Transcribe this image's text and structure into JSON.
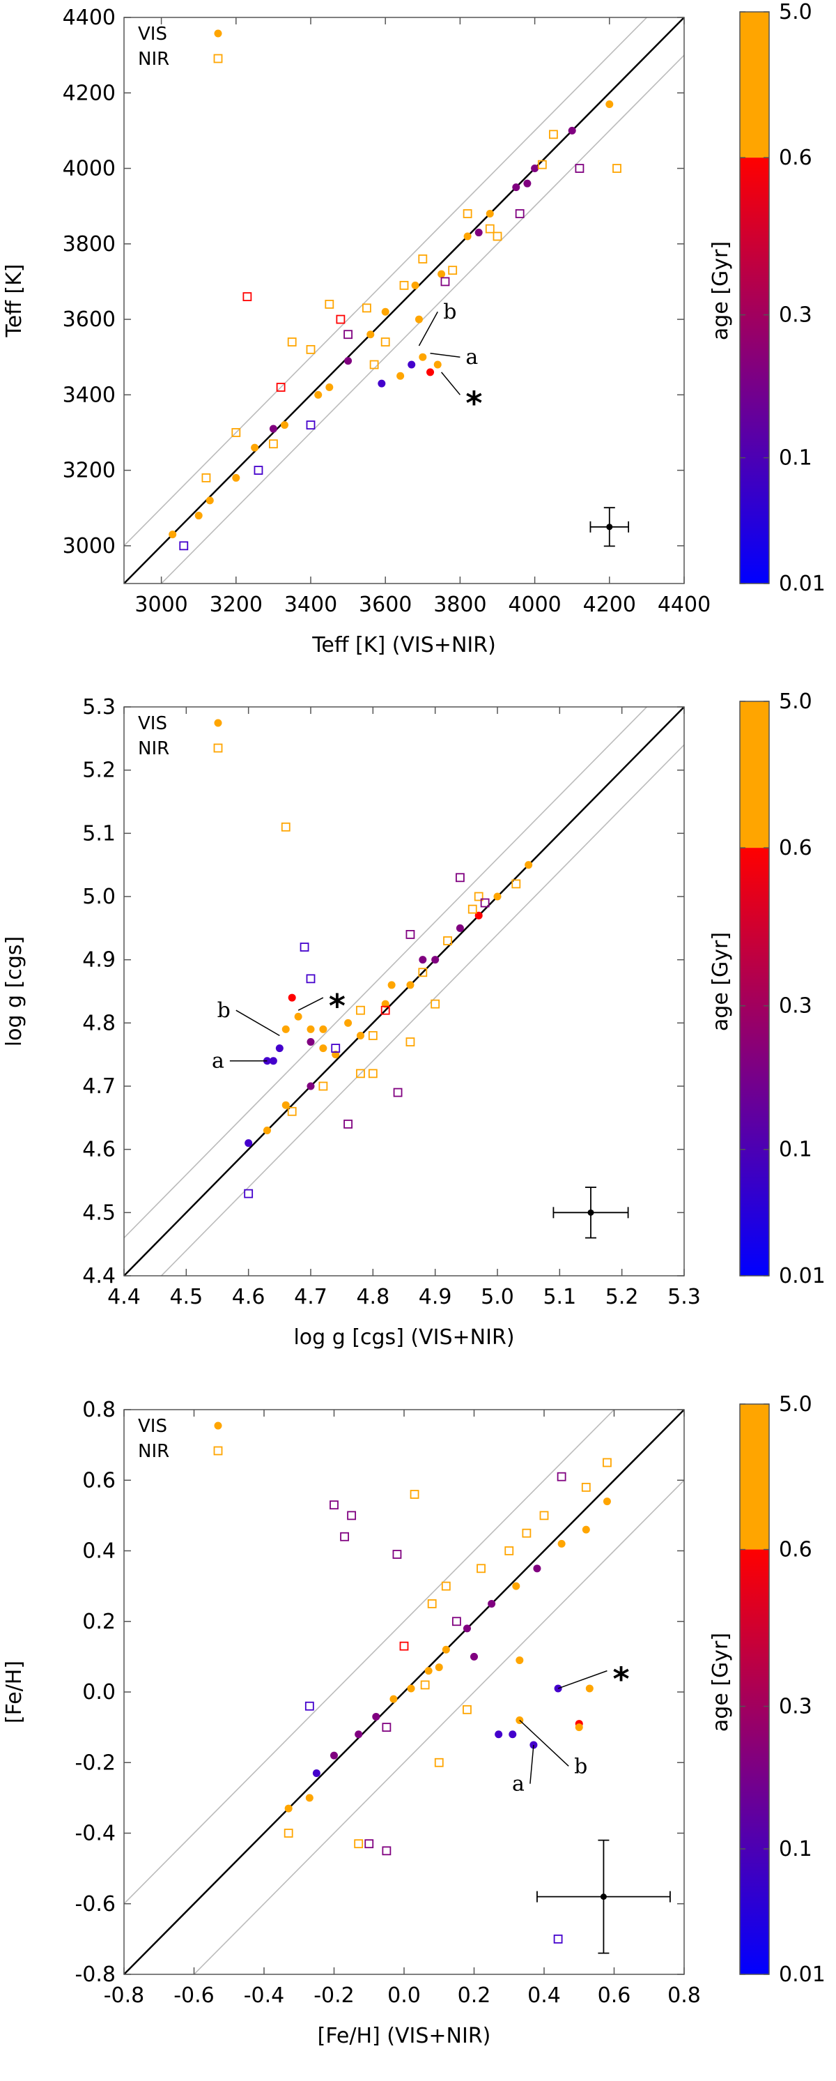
{
  "colors": {
    "vis": "#ffa500",
    "nir": "#ffa500",
    "ref_line": "#000000",
    "dev_line": "#bbbbbb",
    "colorbar": [
      "#0000ff",
      "#800080",
      "#ff0000",
      "#ffa500"
    ]
  },
  "colorbar": {
    "label": "age [Gyr]",
    "ticks": [
      "0.01",
      "0.1",
      "0.3",
      "0.6",
      "5.0"
    ]
  },
  "chart_data": [
    {
      "type": "scatter",
      "xlabel": "Teff [K] (VIS+NIR)",
      "ylabel": "Teff [K]",
      "xlim": [
        2900,
        4400
      ],
      "ylim": [
        2900,
        4400
      ],
      "xticks": [
        3000,
        3200,
        3400,
        3600,
        3800,
        4000,
        4200,
        4400
      ],
      "yticks": [
        3000,
        3200,
        3400,
        3600,
        3800,
        4000,
        4200,
        4400
      ],
      "tick_labels_x": [
        "3000",
        "3200",
        "3400",
        "3600",
        "3800",
        "4000",
        "4200",
        "4400"
      ],
      "tick_labels_y": [
        "3000",
        "3200",
        "3400",
        "3600",
        "3800",
        "4000",
        "4200",
        "4400"
      ],
      "legend": [
        "VIS",
        "NIR"
      ],
      "one_to_one_offset": 100,
      "error_bar": {
        "x": 4200,
        "y": 3050,
        "xerr": 51,
        "yerr": 51
      },
      "annotations": {
        "a": "a",
        "b": "b",
        "star": "*"
      },
      "series": [
        {
          "name": "VIS",
          "marker": "filled-circle",
          "points": [
            [
              3030,
              3030
            ],
            [
              3130,
              3120
            ],
            [
              3250,
              3260
            ],
            [
              3330,
              3320
            ],
            [
              3420,
              3400
            ],
            [
              3500,
              3490
            ],
            [
              3560,
              3560
            ],
            [
              3600,
              3620
            ],
            [
              3680,
              3690
            ],
            [
              3750,
              3720
            ],
            [
              3820,
              3820
            ],
            [
              3880,
              3880
            ],
            [
              3950,
              3950
            ],
            [
              4000,
              4000
            ],
            [
              4100,
              4100
            ],
            [
              4200,
              4170
            ],
            [
              3590,
              3430
            ],
            [
              3670,
              3480
            ],
            [
              3700,
              3500
            ],
            [
              3720,
              3460
            ],
            [
              3740,
              3480
            ],
            [
              3690,
              3600
            ],
            [
              3640,
              3450
            ],
            [
              3300,
              3310
            ],
            [
              3200,
              3180
            ],
            [
              3450,
              3420
            ],
            [
              3100,
              3080
            ],
            [
              3850,
              3830
            ],
            [
              3980,
              3960
            ]
          ],
          "age": [
            5,
            5,
            5,
            5,
            5,
            0.3,
            5,
            5,
            5,
            5,
            5,
            5,
            0.3,
            0.3,
            0.3,
            5,
            0.1,
            0.1,
            5,
            0.6,
            5,
            5,
            5,
            0.3,
            5,
            5,
            5,
            0.3,
            0.3
          ]
        },
        {
          "name": "NIR",
          "marker": "open-square",
          "points": [
            [
              3060,
              3000
            ],
            [
              3120,
              3180
            ],
            [
              3200,
              3300
            ],
            [
              3260,
              3200
            ],
            [
              3320,
              3420
            ],
            [
              3350,
              3540
            ],
            [
              3400,
              3520
            ],
            [
              3450,
              3640
            ],
            [
              3500,
              3560
            ],
            [
              3550,
              3630
            ],
            [
              3600,
              3540
            ],
            [
              3650,
              3690
            ],
            [
              3700,
              3760
            ],
            [
              3760,
              3700
            ],
            [
              3820,
              3880
            ],
            [
              3880,
              3840
            ],
            [
              3960,
              3880
            ],
            [
              4020,
              4010
            ],
            [
              4120,
              4000
            ],
            [
              4220,
              4000
            ],
            [
              3230,
              3660
            ],
            [
              3300,
              3270
            ],
            [
              3400,
              3320
            ],
            [
              3480,
              3600
            ],
            [
              3570,
              3480
            ],
            [
              3780,
              3730
            ],
            [
              3900,
              3820
            ],
            [
              4050,
              4090
            ]
          ],
          "age": [
            0.1,
            5,
            5,
            0.1,
            0.6,
            5,
            5,
            5,
            0.3,
            5,
            5,
            5,
            5,
            0.3,
            5,
            5,
            0.3,
            5,
            0.3,
            5,
            0.6,
            5,
            0.1,
            0.6,
            5,
            5,
            5,
            5
          ]
        }
      ]
    },
    {
      "type": "scatter",
      "xlabel": "log g [cgs] (VIS+NIR)",
      "ylabel": "log g [cgs]",
      "xlim": [
        4.4,
        5.3
      ],
      "ylim": [
        4.4,
        5.3
      ],
      "xticks": [
        4.4,
        4.5,
        4.6,
        4.7,
        4.8,
        4.9,
        5.0,
        5.1,
        5.2,
        5.3
      ],
      "yticks": [
        4.4,
        4.5,
        4.6,
        4.7,
        4.8,
        4.9,
        5.0,
        5.1,
        5.2,
        5.3
      ],
      "tick_labels_x": [
        "4.4",
        "4.5",
        "4.6",
        "4.7",
        "4.8",
        "4.9",
        "5.0",
        "5.1",
        "5.2",
        "5.3"
      ],
      "tick_labels_y": [
        "4.4",
        "4.5",
        "4.6",
        "4.7",
        "4.8",
        "4.9",
        "5.0",
        "5.1",
        "5.2",
        "5.3"
      ],
      "legend": [
        "VIS",
        "NIR"
      ],
      "one_to_one_offset": 0.06,
      "error_bar": {
        "x": 5.15,
        "y": 4.5,
        "xerr": 0.06,
        "yerr": 0.04
      },
      "annotations": {
        "a": "a",
        "b": "b",
        "star": "*"
      },
      "series": [
        {
          "name": "VIS",
          "marker": "filled-circle",
          "points": [
            [
              4.6,
              4.61
            ],
            [
              4.63,
              4.63
            ],
            [
              4.66,
              4.67
            ],
            [
              4.7,
              4.7
            ],
            [
              4.74,
              4.75
            ],
            [
              4.78,
              4.78
            ],
            [
              4.82,
              4.83
            ],
            [
              4.86,
              4.86
            ],
            [
              4.9,
              4.9
            ],
            [
              4.94,
              4.95
            ],
            [
              5.0,
              5.0
            ],
            [
              5.05,
              5.05
            ],
            [
              4.63,
              4.74
            ],
            [
              4.64,
              4.74
            ],
            [
              4.65,
              4.76
            ],
            [
              4.66,
              4.79
            ],
            [
              4.67,
              4.84
            ],
            [
              4.68,
              4.81
            ],
            [
              4.7,
              4.77
            ],
            [
              4.7,
              4.79
            ],
            [
              4.72,
              4.79
            ],
            [
              4.72,
              4.76
            ],
            [
              4.76,
              4.8
            ],
            [
              4.83,
              4.86
            ],
            [
              4.88,
              4.9
            ],
            [
              4.97,
              4.97
            ]
          ],
          "age": [
            0.1,
            5,
            5,
            0.3,
            5,
            5,
            5,
            5,
            0.3,
            0.3,
            5,
            5,
            0.1,
            0.1,
            0.1,
            5,
            0.6,
            5,
            0.3,
            5,
            5,
            5,
            5,
            5,
            0.3,
            0.6
          ]
        },
        {
          "name": "NIR",
          "marker": "open-square",
          "points": [
            [
              4.6,
              4.53
            ],
            [
              4.66,
              5.11
            ],
            [
              4.69,
              4.92
            ],
            [
              4.67,
              4.66
            ],
            [
              4.72,
              4.7
            ],
            [
              4.76,
              4.64
            ],
            [
              4.8,
              4.72
            ],
            [
              4.84,
              4.69
            ],
            [
              4.86,
              4.77
            ],
            [
              4.9,
              4.83
            ],
            [
              4.94,
              5.03
            ],
            [
              4.97,
              5.0
            ],
            [
              4.98,
              4.99
            ],
            [
              5.03,
              5.02
            ],
            [
              4.74,
              4.76
            ],
            [
              4.78,
              4.82
            ],
            [
              4.82,
              4.82
            ],
            [
              4.88,
              4.88
            ],
            [
              4.92,
              4.93
            ],
            [
              4.7,
              4.87
            ],
            [
              4.96,
              4.98
            ],
            [
              4.8,
              4.78
            ],
            [
              4.86,
              4.94
            ],
            [
              4.78,
              4.72
            ]
          ],
          "age": [
            0.1,
            5,
            0.1,
            5,
            5,
            0.3,
            5,
            0.3,
            5,
            5,
            0.3,
            5,
            0.3,
            5,
            0.1,
            5,
            0.6,
            5,
            5,
            0.1,
            5,
            5,
            0.3,
            5
          ]
        }
      ]
    },
    {
      "type": "scatter",
      "xlabel": "[Fe/H] (VIS+NIR)",
      "ylabel": "[Fe/H]",
      "xlim": [
        -0.8,
        0.8
      ],
      "ylim": [
        -0.8,
        0.8
      ],
      "xticks": [
        -0.8,
        -0.6,
        -0.4,
        -0.2,
        0.0,
        0.2,
        0.4,
        0.6,
        0.8
      ],
      "yticks": [
        -0.8,
        -0.6,
        -0.4,
        -0.2,
        0.0,
        0.2,
        0.4,
        0.6,
        0.8
      ],
      "tick_labels_x": [
        "-0.8",
        "-0.6",
        "-0.4",
        "-0.2",
        "0.0",
        "0.2",
        "0.4",
        "0.6",
        "0.8"
      ],
      "tick_labels_y": [
        "-0.8",
        "-0.6",
        "-0.4",
        "-0.2",
        "0.0",
        "0.2",
        "0.4",
        "0.6",
        "0.8"
      ],
      "legend": [
        "VIS",
        "NIR"
      ],
      "one_to_one_offset": 0.2,
      "error_bar": {
        "x": 0.57,
        "y": -0.58,
        "xerr": 0.19,
        "yerr": 0.16
      },
      "annotations": {
        "a": "a",
        "b": "b",
        "star": "*"
      },
      "series": [
        {
          "name": "VIS",
          "marker": "filled-circle",
          "points": [
            [
              -0.33,
              -0.33
            ],
            [
              -0.27,
              -0.3
            ],
            [
              -0.25,
              -0.23
            ],
            [
              -0.2,
              -0.18
            ],
            [
              -0.13,
              -0.12
            ],
            [
              -0.08,
              -0.07
            ],
            [
              -0.03,
              -0.02
            ],
            [
              0.02,
              0.01
            ],
            [
              0.07,
              0.06
            ],
            [
              0.12,
              0.12
            ],
            [
              0.18,
              0.18
            ],
            [
              0.25,
              0.25
            ],
            [
              0.32,
              0.3
            ],
            [
              0.38,
              0.35
            ],
            [
              0.45,
              0.42
            ],
            [
              0.52,
              0.46
            ],
            [
              0.58,
              0.54
            ],
            [
              0.27,
              -0.12
            ],
            [
              0.31,
              -0.12
            ],
            [
              0.37,
              -0.15
            ],
            [
              0.44,
              0.01
            ],
            [
              0.5,
              -0.09
            ],
            [
              0.5,
              -0.1
            ],
            [
              0.53,
              0.01
            ],
            [
              0.33,
              -0.08
            ],
            [
              0.33,
              0.09
            ],
            [
              0.1,
              0.07
            ],
            [
              0.2,
              0.1
            ]
          ],
          "age": [
            5,
            5,
            0.1,
            0.3,
            0.3,
            0.3,
            5,
            5,
            5,
            5,
            0.3,
            0.3,
            5,
            0.3,
            5,
            5,
            5,
            0.1,
            0.1,
            0.1,
            0.1,
            0.6,
            5,
            5,
            5,
            5,
            5,
            0.3
          ]
        },
        {
          "name": "NIR",
          "marker": "open-square",
          "points": [
            [
              -0.33,
              -0.4
            ],
            [
              -0.27,
              -0.04
            ],
            [
              -0.2,
              0.53
            ],
            [
              -0.17,
              0.44
            ],
            [
              -0.15,
              0.5
            ],
            [
              -0.1,
              -0.43
            ],
            [
              -0.05,
              -0.45
            ],
            [
              -0.02,
              0.39
            ],
            [
              0.03,
              0.56
            ],
            [
              0.08,
              0.25
            ],
            [
              0.12,
              0.3
            ],
            [
              0.18,
              -0.05
            ],
            [
              0.22,
              0.35
            ],
            [
              0.3,
              0.4
            ],
            [
              0.4,
              0.5
            ],
            [
              0.45,
              0.61
            ],
            [
              0.52,
              0.58
            ],
            [
              0.58,
              0.65
            ],
            [
              0.44,
              -0.7
            ],
            [
              -0.13,
              -0.43
            ],
            [
              0.0,
              0.13
            ],
            [
              0.06,
              0.02
            ],
            [
              0.15,
              0.2
            ],
            [
              0.35,
              0.45
            ],
            [
              -0.05,
              -0.1
            ],
            [
              0.1,
              -0.2
            ]
          ],
          "age": [
            5,
            0.1,
            0.3,
            0.3,
            0.3,
            0.3,
            0.3,
            0.3,
            5,
            5,
            5,
            5,
            5,
            5,
            5,
            0.3,
            5,
            5,
            0.1,
            5,
            0.6,
            5,
            0.3,
            5,
            0.3,
            5
          ]
        }
      ]
    }
  ]
}
